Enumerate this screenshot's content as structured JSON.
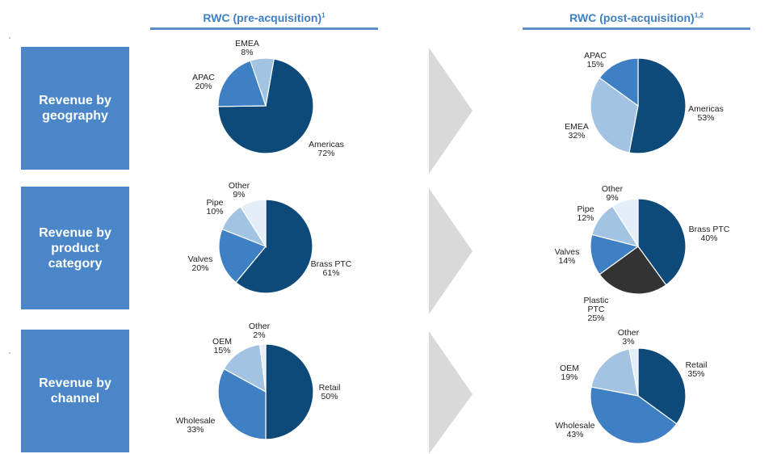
{
  "headers": {
    "pre": {
      "label": "RWC (pre-acquisition)",
      "note": "1"
    },
    "post": {
      "label": "RWC (post-acquisition)",
      "note": "1,2"
    }
  },
  "rows": [
    {
      "label": "Revenue by\ngeography"
    },
    {
      "label": "Revenue by\nproduct\ncategory"
    },
    {
      "label": "Revenue by\nchannel"
    }
  ],
  "chart_data": [
    {
      "type": "pie",
      "panel": "RWC (pre-acquisition)",
      "row": "Revenue by geography",
      "categories": [
        "Americas",
        "APAC",
        "EMEA"
      ],
      "values": [
        72,
        20,
        8
      ],
      "labels": [
        "Americas\n72%",
        "APAC\n20%",
        "EMEA\n8%"
      ],
      "colors": [
        "#0d4a7a",
        "#3f7fc3",
        "#a3c3e3"
      ]
    },
    {
      "type": "pie",
      "panel": "RWC (post-acquisition)",
      "row": "Revenue by geography",
      "categories": [
        "Americas",
        "EMEA",
        "APAC"
      ],
      "values": [
        53,
        32,
        15
      ],
      "labels": [
        "Americas\n53%",
        "EMEA\n32%",
        "APAC\n15%"
      ],
      "colors": [
        "#0d4a7a",
        "#a3c3e3",
        "#3f7fc3"
      ]
    },
    {
      "type": "pie",
      "panel": "RWC (pre-acquisition)",
      "row": "Revenue by product category",
      "categories": [
        "Brass PTC",
        "Valves",
        "Pipe",
        "Other"
      ],
      "values": [
        61,
        20,
        10,
        9
      ],
      "labels": [
        "Brass PTC\n61%",
        "Valves\n20%",
        "Pipe\n10%",
        "Other\n9%"
      ],
      "colors": [
        "#0d4a7a",
        "#3f7fc3",
        "#a3c3e3",
        "#e3eef8"
      ]
    },
    {
      "type": "pie",
      "panel": "RWC (post-acquisition)",
      "row": "Revenue by product category",
      "categories": [
        "Brass PTC",
        "Plastic PTC",
        "Valves",
        "Pipe",
        "Other"
      ],
      "values": [
        40,
        25,
        14,
        12,
        9
      ],
      "labels": [
        "Brass PTC\n40%",
        "Plastic\nPTC\n25%",
        "Valves\n14%",
        "Pipe\n12%",
        "Other\n9%"
      ],
      "colors": [
        "#0d4a7a",
        "#333333",
        "#3f7fc3",
        "#a3c3e3",
        "#e3eef8"
      ]
    },
    {
      "type": "pie",
      "panel": "RWC (pre-acquisition)",
      "row": "Revenue by channel",
      "categories": [
        "Retail",
        "Wholesale",
        "OEM",
        "Other"
      ],
      "values": [
        50,
        33,
        15,
        2
      ],
      "labels": [
        "Retail\n50%",
        "Wholesale\n33%",
        "OEM\n15%",
        "Other\n2%"
      ],
      "colors": [
        "#0d4a7a",
        "#3f7fc3",
        "#a3c3e3",
        "#e3eef8"
      ]
    },
    {
      "type": "pie",
      "panel": "RWC (post-acquisition)",
      "row": "Revenue by channel",
      "categories": [
        "Retail",
        "Wholesale",
        "OEM",
        "Other"
      ],
      "values": [
        35,
        43,
        19,
        3
      ],
      "labels": [
        "Retail\n35%",
        "Wholesale\n43%",
        "OEM\n19%",
        "Other\n3%"
      ],
      "colors": [
        "#0d4a7a",
        "#3f7fc3",
        "#a3c3e3",
        "#e3eef8"
      ]
    }
  ]
}
